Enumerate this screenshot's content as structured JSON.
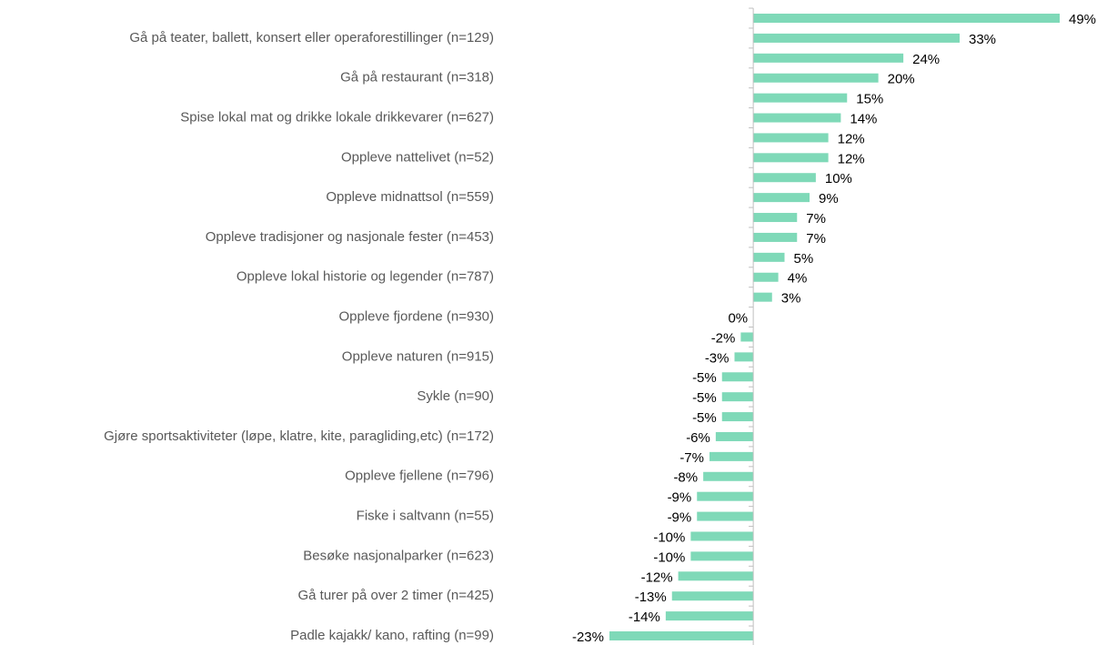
{
  "chart_data": {
    "type": "hbar",
    "categories": [
      null,
      "Gå på teater, ballett, konsert eller operaforestillinger (n=129)",
      null,
      "Gå på restaurant (n=318)",
      null,
      "Spise lokal mat og drikke lokale drikkevarer (n=627)",
      null,
      "Oppleve nattelivet (n=52)",
      null,
      "Oppleve midnattsol (n=559)",
      null,
      "Oppleve tradisjoner og nasjonale fester (n=453)",
      null,
      "Oppleve lokal historie og legender (n=787)",
      null,
      "Oppleve fjordene (n=930)",
      null,
      "Oppleve naturen (n=915)",
      null,
      "Sykle (n=90)",
      null,
      "Gjøre sportsaktiviteter (løpe, klatre, kite, paragliding,etc) (n=172)",
      null,
      "Oppleve fjellene (n=796)",
      null,
      "Fiske i saltvann (n=55)",
      null,
      "Besøke nasjonalparker (n=623)",
      null,
      "Gå turer på over 2 timer (n=425)",
      null,
      "Padle kajakk/ kano, rafting (n=99)"
    ],
    "values": [
      49,
      33,
      24,
      20,
      15,
      14,
      12,
      12,
      10,
      9,
      7,
      7,
      5,
      4,
      3,
      0,
      -2,
      -3,
      -5,
      -5,
      -5,
      -6,
      -7,
      -8,
      -9,
      -9,
      -10,
      -10,
      -12,
      -13,
      -14,
      -23
    ],
    "value_labels": [
      "49%",
      "33%",
      "24%",
      "20%",
      "15%",
      "14%",
      "12%",
      "12%",
      "10%",
      "9%",
      "7%",
      "7%",
      "5%",
      "4%",
      "3%",
      "0%",
      "-2%",
      "-3%",
      "-5%",
      "-5%",
      "-5%",
      "-6%",
      "-7%",
      "-8%",
      "-9%",
      "-9%",
      "-10%",
      "-10%",
      "-12%",
      "-13%",
      "-14%",
      "-23%"
    ],
    "color": "#7fd9b8",
    "xlim": [
      -23,
      49
    ]
  }
}
